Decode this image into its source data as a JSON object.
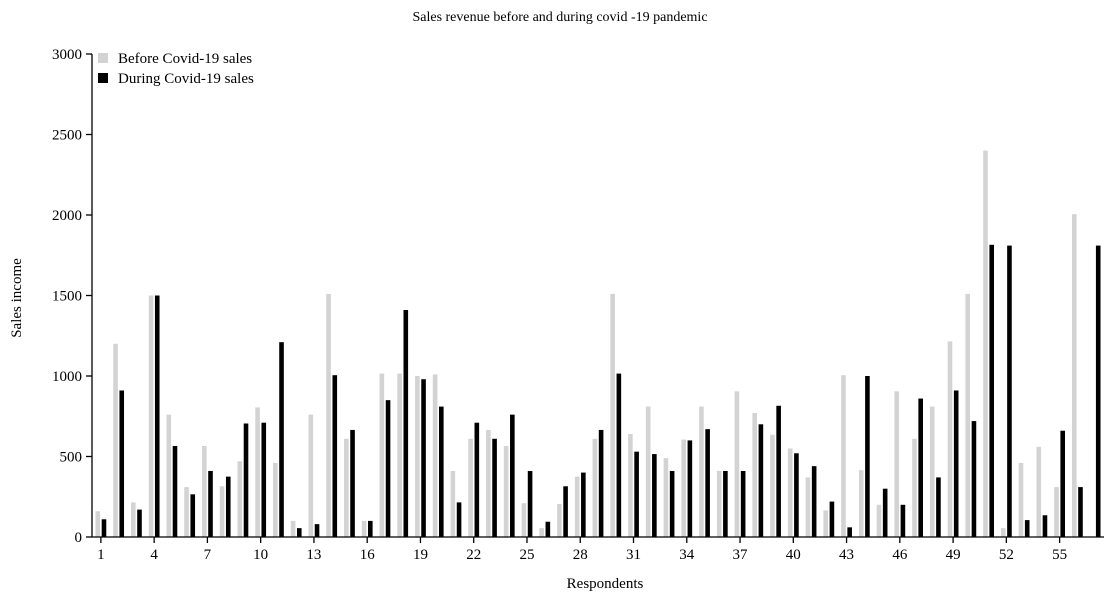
{
  "chart_data": {
    "type": "bar",
    "title": "Sales revenue before and during covid -19 pandemic",
    "xlabel": "Respondents",
    "ylabel": "Sales income",
    "ylim": [
      0,
      3000
    ],
    "yticks": [
      0,
      500,
      1000,
      1500,
      2000,
      2500,
      3000
    ],
    "categories": [
      "1",
      "2",
      "3",
      "4",
      "5",
      "6",
      "7",
      "8",
      "9",
      "10",
      "11",
      "12",
      "13",
      "14",
      "15",
      "16",
      "17",
      "18",
      "19",
      "20",
      "21",
      "22",
      "23",
      "24",
      "25",
      "26",
      "27",
      "28",
      "29",
      "30",
      "31",
      "32",
      "33",
      "34",
      "35",
      "36",
      "37",
      "38",
      "39",
      "40",
      "41",
      "42",
      "43",
      "44",
      "45",
      "46",
      "47",
      "48",
      "49",
      "50",
      "51",
      "52",
      "53",
      "54",
      "55",
      "56",
      "57"
    ],
    "xtick_labels": [
      "1",
      "4",
      "7",
      "10",
      "13",
      "16",
      "19",
      "22",
      "25",
      "28",
      "31",
      "34",
      "37",
      "40",
      "43",
      "46",
      "49",
      "52",
      "55"
    ],
    "legend_position": "top-left",
    "grid": false,
    "series": [
      {
        "name": "Before Covid-19 sales",
        "color": "#d3d3d3",
        "values": [
          160,
          1200,
          215,
          1500,
          760,
          310,
          565,
          315,
          470,
          805,
          460,
          100,
          760,
          1510,
          610,
          100,
          1015,
          1015,
          1000,
          1010,
          410,
          610,
          665,
          565,
          210,
          55,
          205,
          375,
          610,
          1510,
          640,
          810,
          490,
          605,
          810,
          410,
          905,
          770,
          635,
          550,
          370,
          165,
          1005,
          415,
          200,
          905,
          610,
          810,
          1215,
          1510,
          2400,
          55,
          460,
          560,
          310,
          2005,
          0
        ]
      },
      {
        "name": "During Covid-19 sales",
        "color": "#000000",
        "values": [
          110,
          910,
          170,
          1500,
          565,
          265,
          410,
          375,
          705,
          710,
          1210,
          55,
          80,
          1005,
          665,
          100,
          850,
          1410,
          980,
          810,
          215,
          710,
          610,
          760,
          410,
          95,
          315,
          400,
          665,
          1015,
          530,
          515,
          410,
          600,
          670,
          410,
          410,
          700,
          815,
          520,
          440,
          220,
          60,
          1000,
          300,
          200,
          860,
          370,
          910,
          720,
          1815,
          1810,
          105,
          135,
          660,
          310,
          1810
        ]
      }
    ]
  }
}
